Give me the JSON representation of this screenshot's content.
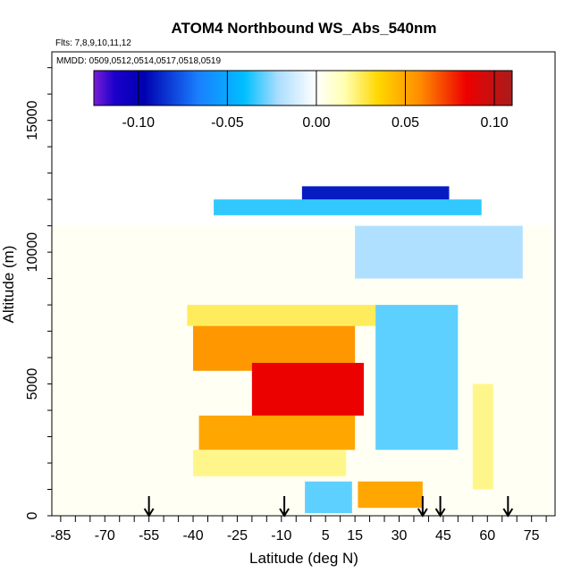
{
  "chart_data": {
    "type": "heatmap",
    "title": "ATOM4 Northbound WS_Abs_540nm",
    "flights_label": "Flts: 7,8,9,10,11,12",
    "mmdd_label": "MMDD: 0509,0512,0514,0517,0518,0519",
    "xlabel": "Latitude (deg N)",
    "ylabel": "Altitude (m)",
    "xlim": [
      -88,
      83
    ],
    "ylim": [
      0,
      17600
    ],
    "x_ticks": [
      -85,
      -70,
      -55,
      -40,
      -25,
      -10,
      5,
      15,
      30,
      45,
      60,
      75
    ],
    "y_ticks": [
      0,
      5000,
      10000,
      15000
    ],
    "colorbar": {
      "range": [
        -0.125,
        0.11
      ],
      "ticks": [
        -0.1,
        -0.05,
        0.0,
        0.05,
        0.1
      ],
      "tick_labels": [
        "-0.10",
        "-0.05",
        "0.00",
        "0.05",
        "0.10"
      ]
    },
    "arrow_latitudes": [
      -55,
      -9,
      38,
      44,
      67
    ],
    "regions": [
      {
        "name": "background",
        "lat": [
          -88,
          82
        ],
        "alt": [
          0,
          11000
        ],
        "value": 0.002
      },
      {
        "name": "upper-blue-band",
        "lat": [
          -33,
          58
        ],
        "alt": [
          11400,
          12000
        ],
        "value": -0.035
      },
      {
        "name": "top-dark-blue",
        "lat": [
          -3,
          47
        ],
        "alt": [
          12000,
          12500
        ],
        "value": -0.09
      },
      {
        "name": "mid-light-blue",
        "lat": [
          15,
          72
        ],
        "alt": [
          9000,
          11000
        ],
        "value": -0.02
      },
      {
        "name": "yellow-layer",
        "lat": [
          -42,
          22
        ],
        "alt": [
          7200,
          8000
        ],
        "value": 0.025
      },
      {
        "name": "orange-layer",
        "lat": [
          -40,
          15
        ],
        "alt": [
          5500,
          7200
        ],
        "value": 0.055
      },
      {
        "name": "red-core",
        "lat": [
          -20,
          18
        ],
        "alt": [
          3800,
          5800
        ],
        "value": 0.085
      },
      {
        "name": "orange-lower",
        "lat": [
          -38,
          15
        ],
        "alt": [
          2500,
          3800
        ],
        "value": 0.05
      },
      {
        "name": "yellow-lower",
        "lat": [
          -40,
          12
        ],
        "alt": [
          1500,
          2500
        ],
        "value": 0.02
      },
      {
        "name": "blue-wedge",
        "lat": [
          22,
          50
        ],
        "alt": [
          2500,
          8000
        ],
        "value": -0.03
      },
      {
        "name": "surface-orange",
        "lat": [
          16,
          38
        ],
        "alt": [
          300,
          1300
        ],
        "value": 0.05
      },
      {
        "name": "surface-blue",
        "lat": [
          -2,
          14
        ],
        "alt": [
          100,
          1300
        ],
        "value": -0.03
      },
      {
        "name": "right-yellow-strip",
        "lat": [
          55,
          62
        ],
        "alt": [
          1000,
          5000
        ],
        "value": 0.02
      }
    ]
  }
}
